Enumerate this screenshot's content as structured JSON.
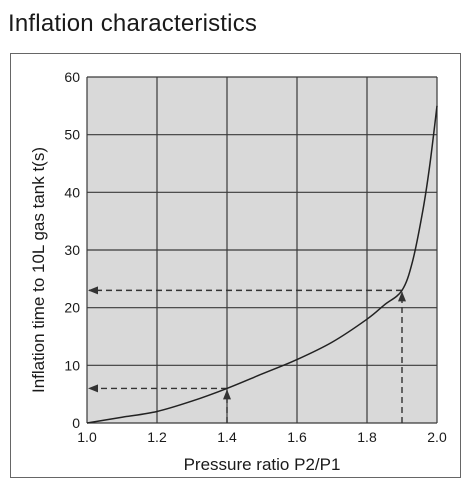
{
  "page": {
    "title": "Inflation characteristics"
  },
  "chart_data": {
    "type": "line",
    "title": "Inflation characteristics",
    "xlabel": "Pressure ratio P2/P1",
    "ylabel": "Inflation time to 10L gas tank t(s)",
    "xlim": [
      1.0,
      2.0
    ],
    "ylim": [
      0,
      60
    ],
    "x_ticks": [
      1.0,
      1.2,
      1.4,
      1.6,
      1.8,
      2.0
    ],
    "x_tick_labels": [
      "1.0",
      "1.2",
      "1.4",
      "1.6",
      "1.8",
      "2.0"
    ],
    "y_ticks": [
      0,
      10,
      20,
      30,
      40,
      50,
      60
    ],
    "y_tick_labels": [
      "0",
      "10",
      "20",
      "30",
      "40",
      "50",
      "60"
    ],
    "grid": true,
    "series": [
      {
        "x": [
          1.0,
          1.1,
          1.2,
          1.3,
          1.4,
          1.5,
          1.6,
          1.7,
          1.8,
          1.85,
          1.9,
          1.93,
          1.96,
          1.98,
          2.0
        ],
        "y": [
          0,
          1,
          2,
          3.8,
          6,
          8.5,
          11,
          14,
          18,
          20.5,
          23,
          28,
          37,
          45,
          55
        ],
        "color": "#222222"
      }
    ],
    "annotations": [
      {
        "type": "reference",
        "x": 1.4,
        "y": 6
      },
      {
        "type": "reference",
        "x": 1.9,
        "y": 23
      }
    ],
    "colors": {
      "plot_background": "#d9d9d9",
      "grid": "#3a3a3a",
      "line": "#222222",
      "reference": "#333333"
    }
  }
}
